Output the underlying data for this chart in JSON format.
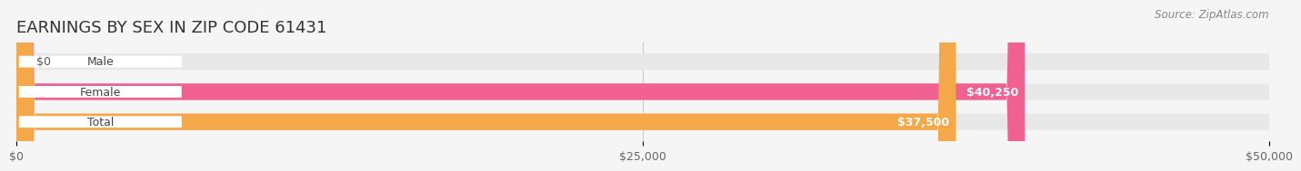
{
  "title": "EARNINGS BY SEX IN ZIP CODE 61431",
  "source": "Source: ZipAtlas.com",
  "categories": [
    "Male",
    "Female",
    "Total"
  ],
  "values": [
    0,
    40250,
    37500
  ],
  "bar_colors": [
    "#a8c8e8",
    "#f06090",
    "#f5a84a"
  ],
  "label_colors": [
    "#555555",
    "#ffffff",
    "#ffffff"
  ],
  "background_color": "#f5f5f5",
  "bar_bg_color": "#e8e8e8",
  "xlim": [
    0,
    50000
  ],
  "xticks": [
    0,
    25000,
    50000
  ],
  "xtick_labels": [
    "$0",
    "$25,000",
    "$50,000"
  ],
  "title_fontsize": 13,
  "source_fontsize": 8.5,
  "label_fontsize": 9,
  "value_fontsize": 9,
  "bar_height": 0.55,
  "fig_width": 14.06,
  "fig_height": 1.96
}
